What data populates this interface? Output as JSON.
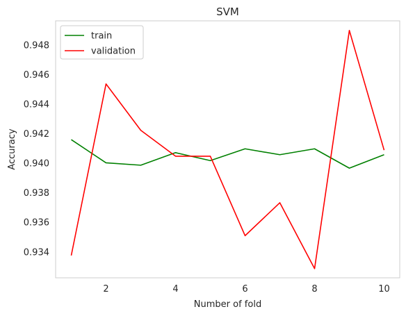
{
  "chart_data": {
    "type": "line",
    "title": "SVM",
    "xlabel": "Number of fold",
    "ylabel": "Accuracy",
    "x": [
      1,
      2,
      3,
      4,
      5,
      6,
      7,
      8,
      9,
      10
    ],
    "xlim": [
      0.55,
      10.45
    ],
    "ylim": [
      0.93225,
      0.94964
    ],
    "xticks": [
      2,
      4,
      6,
      8,
      10
    ],
    "yticks": [
      0.934,
      0.936,
      0.938,
      0.94,
      0.942,
      0.944,
      0.946,
      0.948
    ],
    "grid": false,
    "legend": "top-left",
    "series": [
      {
        "name": "train",
        "color": "#008000",
        "values": [
          0.9416,
          0.94003,
          0.93987,
          0.94072,
          0.94018,
          0.94098,
          0.94058,
          0.94098,
          0.93967,
          0.94058
        ]
      },
      {
        "name": "validation",
        "color": "#ff0000",
        "values": [
          0.93376,
          0.94537,
          0.94223,
          0.94048,
          0.94048,
          0.9351,
          0.93733,
          0.93287,
          0.94899,
          0.94089
        ]
      }
    ]
  }
}
